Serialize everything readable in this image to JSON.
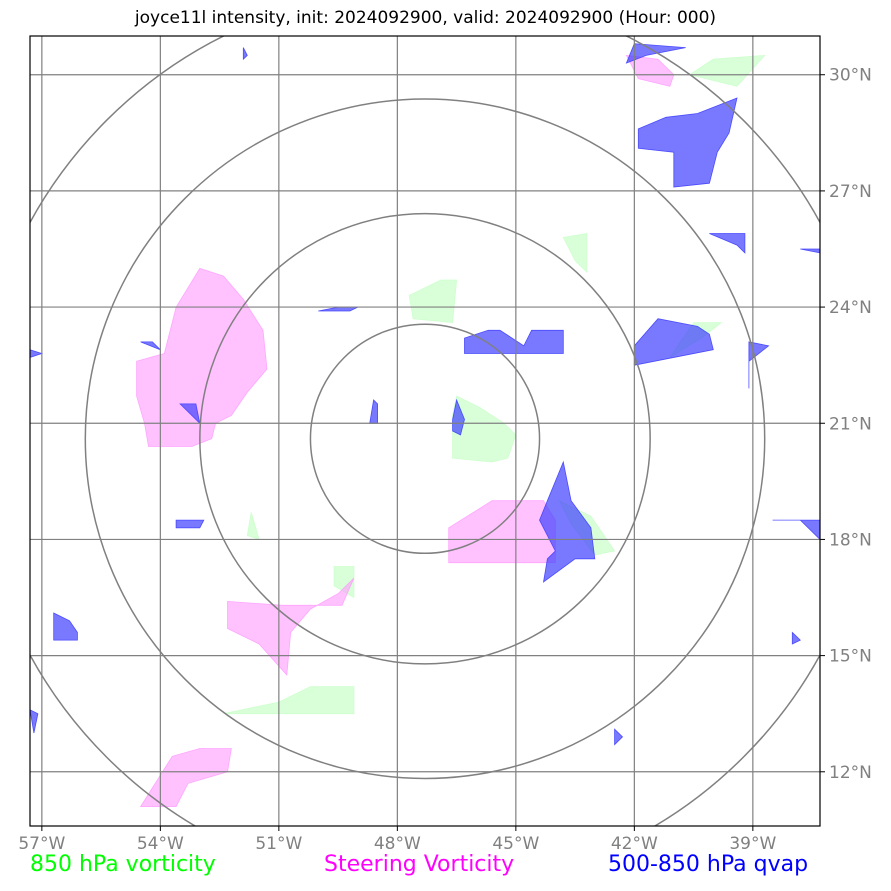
{
  "title": "joyce11l intensity, init: 2024092900, valid: 2024092900 (Hour: 000)",
  "map": {
    "lon_range": [
      -57.3,
      -37.3
    ],
    "lat_range": [
      10.6,
      31.0
    ],
    "lon_ticks": [
      -57,
      -54,
      -51,
      -48,
      -45,
      -42,
      -39
    ],
    "lat_ticks": [
      12,
      15,
      18,
      21,
      24,
      27,
      30
    ],
    "lon_tick_labels": [
      "57°W",
      "54°W",
      "51°W",
      "48°W",
      "45°W",
      "42°W",
      "39°W"
    ],
    "lat_tick_labels": [
      "12°N",
      "15°N",
      "18°N",
      "21°N",
      "24°N",
      "27°N",
      "30°N"
    ],
    "center": {
      "lon": -47.3,
      "lat": 20.6
    },
    "range_rings_deg": [
      2.9,
      5.7,
      8.6,
      11.4
    ],
    "grid": true,
    "colors": {
      "vorticity_850": "#ccffcc",
      "steering_vorticity": "#ff99ff",
      "qvap_500_850": "#4040ff",
      "gridline": "#808080",
      "ring": "#808080"
    }
  },
  "fields": {
    "vorticity_850": [
      [
        [
          -46.6,
          21.2
        ],
        [
          -46.5,
          21.7
        ],
        [
          -45.9,
          21.4
        ],
        [
          -45.3,
          21.0
        ],
        [
          -45.0,
          20.7
        ],
        [
          -45.2,
          20.1
        ],
        [
          -45.6,
          20.0
        ],
        [
          -46.6,
          20.1
        ]
      ],
      [
        [
          -47.6,
          23.7
        ],
        [
          -47.7,
          24.3
        ],
        [
          -46.9,
          24.7
        ],
        [
          -46.5,
          24.7
        ],
        [
          -46.6,
          23.6
        ]
      ],
      [
        [
          -43.8,
          25.8
        ],
        [
          -43.2,
          25.9
        ],
        [
          -43.2,
          24.9
        ],
        [
          -43.5,
          25.2
        ]
      ],
      [
        [
          -43.9,
          19.0
        ],
        [
          -43.1,
          18.6
        ],
        [
          -42.5,
          17.7
        ],
        [
          -43.0,
          17.6
        ],
        [
          -43.6,
          18.4
        ]
      ],
      [
        [
          -41.1,
          22.7
        ],
        [
          -40.3,
          23.2
        ],
        [
          -39.8,
          23.6
        ],
        [
          -40.5,
          23.6
        ]
      ],
      [
        [
          -40.0,
          30.4
        ],
        [
          -38.7,
          30.5
        ],
        [
          -39.4,
          29.7
        ],
        [
          -40.6,
          30.0
        ]
      ],
      [
        [
          -49.6,
          17.3
        ],
        [
          -49.1,
          17.3
        ],
        [
          -49.1,
          16.5
        ],
        [
          -49.6,
          16.8
        ]
      ],
      [
        [
          -52.4,
          13.5
        ],
        [
          -51.0,
          13.8
        ],
        [
          -50.2,
          14.2
        ],
        [
          -49.1,
          14.2
        ],
        [
          -49.1,
          13.5
        ]
      ],
      [
        [
          -51.8,
          18.1
        ],
        [
          -51.7,
          18.7
        ],
        [
          -51.5,
          18.0
        ]
      ]
    ],
    "steering_vorticity": [
      [
        [
          -54.6,
          22.6
        ],
        [
          -53.9,
          22.8
        ],
        [
          -53.6,
          24.0
        ],
        [
          -53.0,
          25.0
        ],
        [
          -52.4,
          24.8
        ],
        [
          -51.9,
          24.2
        ],
        [
          -51.4,
          23.4
        ],
        [
          -51.3,
          22.4
        ],
        [
          -51.8,
          21.8
        ],
        [
          -52.2,
          21.2
        ],
        [
          -52.6,
          21.0
        ],
        [
          -52.7,
          20.6
        ],
        [
          -53.2,
          20.4
        ],
        [
          -54.3,
          20.4
        ],
        [
          -54.4,
          21.0
        ],
        [
          -54.6,
          21.7
        ]
      ],
      [
        [
          -46.7,
          18.3
        ],
        [
          -45.6,
          19.0
        ],
        [
          -44.3,
          19.0
        ],
        [
          -44.0,
          18.5
        ],
        [
          -44.0,
          17.4
        ],
        [
          -46.7,
          17.4
        ]
      ],
      [
        [
          -52.3,
          16.4
        ],
        [
          -50.9,
          16.3
        ],
        [
          -49.4,
          16.3
        ],
        [
          -49.1,
          17.0
        ],
        [
          -49.5,
          16.6
        ],
        [
          -50.2,
          16.2
        ],
        [
          -50.7,
          15.6
        ],
        [
          -50.8,
          14.5
        ],
        [
          -51.5,
          15.3
        ],
        [
          -52.3,
          15.7
        ]
      ],
      [
        [
          -54.5,
          11.1
        ],
        [
          -53.7,
          12.4
        ],
        [
          -53.0,
          12.6
        ],
        [
          -52.2,
          12.6
        ],
        [
          -52.3,
          12.0
        ],
        [
          -53.3,
          11.7
        ],
        [
          -53.6,
          11.1
        ]
      ],
      [
        [
          -42.2,
          30.5
        ],
        [
          -41.4,
          30.4
        ],
        [
          -41.0,
          30.0
        ],
        [
          -41.1,
          29.7
        ],
        [
          -41.9,
          29.9
        ]
      ]
    ],
    "qvap_500_850": [
      [
        [
          -46.6,
          21.1
        ],
        [
          -46.5,
          21.6
        ],
        [
          -46.3,
          21.1
        ],
        [
          -46.4,
          20.7
        ],
        [
          -46.6,
          20.8
        ]
      ],
      [
        [
          -46.3,
          23.2
        ],
        [
          -45.7,
          23.4
        ],
        [
          -45.4,
          23.4
        ],
        [
          -44.8,
          23.0
        ],
        [
          -44.6,
          23.4
        ],
        [
          -43.8,
          23.4
        ],
        [
          -43.8,
          22.8
        ],
        [
          -46.3,
          22.8
        ]
      ],
      [
        [
          -44.4,
          18.5
        ],
        [
          -44.2,
          19.0
        ],
        [
          -43.8,
          20.0
        ],
        [
          -43.6,
          19.0
        ],
        [
          -43.1,
          18.3
        ],
        [
          -43.0,
          17.5
        ],
        [
          -43.5,
          17.5
        ],
        [
          -44.3,
          16.9
        ],
        [
          -44.2,
          17.5
        ],
        [
          -44.0,
          17.7
        ]
      ],
      [
        [
          -42.0,
          22.5
        ],
        [
          -40.0,
          22.9
        ],
        [
          -40.1,
          23.3
        ],
        [
          -40.4,
          23.5
        ],
        [
          -41.4,
          23.7
        ],
        [
          -42.0,
          23.0
        ]
      ],
      [
        [
          -41.9,
          28.6
        ],
        [
          -41.2,
          28.9
        ],
        [
          -40.4,
          29.0
        ],
        [
          -39.4,
          29.4
        ],
        [
          -39.6,
          28.5
        ],
        [
          -39.9,
          28.0
        ],
        [
          -40.1,
          27.2
        ],
        [
          -41.0,
          27.1
        ],
        [
          -41.0,
          28.0
        ],
        [
          -41.9,
          28.1
        ]
      ],
      [
        [
          -40.1,
          25.9
        ],
        [
          -39.2,
          25.9
        ],
        [
          -39.2,
          25.4
        ],
        [
          -39.4,
          25.6
        ]
      ],
      [
        [
          -39.1,
          23.1
        ],
        [
          -38.6,
          23.0
        ],
        [
          -39.1,
          22.6
        ],
        [
          -39.1,
          21.9
        ]
      ],
      [
        [
          -38.5,
          18.5
        ],
        [
          -37.3,
          18.5
        ],
        [
          -37.3,
          18.0
        ],
        [
          -37.8,
          18.5
        ]
      ],
      [
        [
          -56.7,
          16.1
        ],
        [
          -56.3,
          15.9
        ],
        [
          -56.1,
          15.6
        ],
        [
          -56.1,
          15.4
        ],
        [
          -56.7,
          15.4
        ]
      ],
      [
        [
          -54.5,
          23.1
        ],
        [
          -54.0,
          22.9
        ],
        [
          -54.2,
          23.1
        ]
      ],
      [
        [
          -53.1,
          21.5
        ],
        [
          -53.0,
          21.0
        ],
        [
          -53.5,
          21.5
        ]
      ],
      [
        [
          -53.6,
          18.5
        ],
        [
          -52.9,
          18.5
        ],
        [
          -53.0,
          18.3
        ],
        [
          -53.6,
          18.3
        ]
      ],
      [
        [
          -51.9,
          30.7
        ],
        [
          -51.8,
          30.5
        ],
        [
          -51.9,
          30.4
        ]
      ],
      [
        [
          -49.0,
          24.0
        ],
        [
          -49.5,
          24.0
        ],
        [
          -50.0,
          23.9
        ],
        [
          -49.2,
          23.9
        ]
      ],
      [
        [
          -48.6,
          21.6
        ],
        [
          -48.7,
          21.0
        ],
        [
          -48.5,
          21.0
        ],
        [
          -48.5,
          21.5
        ]
      ],
      [
        [
          -42.0,
          30.8
        ],
        [
          -40.7,
          30.7
        ],
        [
          -41.7,
          30.5
        ],
        [
          -42.2,
          30.3
        ]
      ],
      [
        [
          -57.3,
          22.9
        ],
        [
          -57.0,
          22.8
        ],
        [
          -57.3,
          22.7
        ]
      ],
      [
        [
          -57.3,
          13.6
        ],
        [
          -57.1,
          13.5
        ],
        [
          -57.2,
          13.0
        ]
      ],
      [
        [
          -42.5,
          13.1
        ],
        [
          -42.3,
          12.9
        ],
        [
          -42.5,
          12.7
        ]
      ],
      [
        [
          -37.8,
          25.5
        ],
        [
          -37.3,
          25.5
        ],
        [
          -37.3,
          25.4
        ]
      ],
      [
        [
          -38.0,
          15.6
        ],
        [
          -37.8,
          15.4
        ],
        [
          -38.0,
          15.3
        ]
      ]
    ]
  },
  "legend": {
    "vorticity_850": {
      "label": "850 hPa vorticity",
      "color": "#00ff00"
    },
    "steering_vorticity": {
      "label": "Steering Vorticity",
      "color": "#ff00ff"
    },
    "qvap_500_850": {
      "label": "500-850 hPa qvap",
      "color": "#0000ff"
    }
  }
}
